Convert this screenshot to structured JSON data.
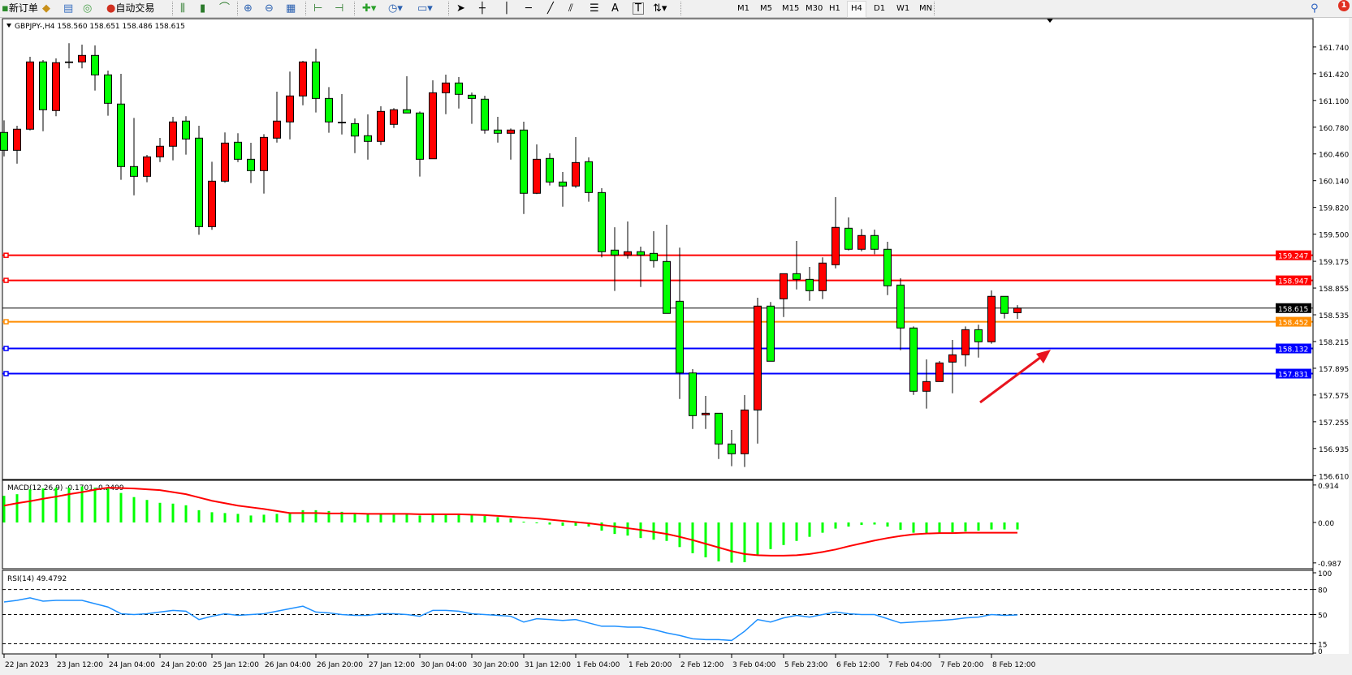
{
  "toolbar": {
    "new_order": "新订单",
    "auto_trading": "自动交易",
    "timeframes": [
      "M1",
      "M5",
      "M15",
      "M30",
      "H1",
      "H4",
      "D1",
      "W1",
      "MN"
    ],
    "active_timeframe": "H4",
    "notification_count": "1",
    "text_tool": "A",
    "text_label_tool": "T"
  },
  "chart": {
    "header": "GBPJPY-,H4  158.560 158.651 158.486 158.615",
    "colors": {
      "up": "#ff0000",
      "down": "#00ff00",
      "background": "#ffffff",
      "grid": "none"
    },
    "horizontal_lines": [
      {
        "price": "159.247",
        "color": "#ff0000"
      },
      {
        "price": "158.947",
        "color": "#ff0000"
      },
      {
        "price": "158.615",
        "color": "#000000"
      },
      {
        "price": "158.452",
        "color": "#ff8c00"
      },
      {
        "price": "158.132",
        "color": "#0000ff"
      },
      {
        "price": "157.831",
        "color": "#0000ff"
      }
    ],
    "annotation": {
      "type": "arrow",
      "direction": "up-right",
      "color": "#e8141e"
    }
  },
  "chart_data": [
    {
      "type": "candlestick",
      "symbol": "GBPJPY-",
      "timeframe": "H4",
      "price_ticks": [
        "161.740",
        "161.420",
        "161.100",
        "160.780",
        "160.460",
        "160.140",
        "159.820",
        "159.500",
        "159.175",
        "158.855",
        "158.535",
        "158.215",
        "157.895",
        "157.575",
        "157.255",
        "156.935",
        "156.610"
      ],
      "ylim": [
        156.61,
        161.74
      ],
      "time_labels": [
        "22 Jan 2023",
        "23 Jan 12:00",
        "24 Jan 04:00",
        "24 Jan 20:00",
        "25 Jan 12:00",
        "26 Jan 04:00",
        "26 Jan 20:00",
        "27 Jan 12:00",
        "30 Jan 04:00",
        "30 Jan 20:00",
        "31 Jan 12:00",
        "1 Feb 04:00",
        "1 Feb 20:00",
        "2 Feb 12:00",
        "3 Feb 04:00",
        "5 Feb 23:00",
        "6 Feb 12:00",
        "7 Feb 04:00",
        "7 Feb 20:00",
        "8 Feb 12:00"
      ],
      "ohlc": [
        [
          160.717,
          160.862,
          160.431,
          160.503
        ],
        [
          160.503,
          160.797,
          160.344,
          160.756
        ],
        [
          160.756,
          161.623,
          160.742,
          161.561
        ],
        [
          161.561,
          161.584,
          160.732,
          160.989
        ],
        [
          160.979,
          161.603,
          160.911,
          161.552
        ],
        [
          161.561,
          161.785,
          161.484,
          161.561
        ],
        [
          161.561,
          161.768,
          161.484,
          161.639
        ],
        [
          161.639,
          161.758,
          161.218,
          161.406
        ],
        [
          161.406,
          161.457,
          160.917,
          161.066
        ],
        [
          161.057,
          161.419,
          160.15,
          160.309
        ],
        [
          160.309,
          160.891,
          159.965,
          160.192
        ],
        [
          160.192,
          160.448,
          160.121,
          160.425
        ],
        [
          160.425,
          160.652,
          160.363,
          160.552
        ],
        [
          160.552,
          160.904,
          160.383,
          160.843
        ],
        [
          160.853,
          160.911,
          160.451,
          160.639
        ],
        [
          160.649,
          160.797,
          159.493,
          159.59
        ],
        [
          159.59,
          160.367,
          159.552,
          160.134
        ],
        [
          160.134,
          160.717,
          160.115,
          160.59
        ],
        [
          160.6,
          160.707,
          160.363,
          160.396
        ],
        [
          160.396,
          160.593,
          160.111,
          160.26
        ],
        [
          160.26,
          160.697,
          159.985,
          160.658
        ],
        [
          160.649,
          161.205,
          160.596,
          160.853
        ],
        [
          160.843,
          161.445,
          160.635,
          161.154
        ],
        [
          161.154,
          161.574,
          161.043,
          161.561
        ],
        [
          161.561,
          161.72,
          160.956,
          161.124
        ],
        [
          161.124,
          161.26,
          160.713,
          160.843
        ],
        [
          160.839,
          161.176,
          160.693,
          160.839
        ],
        [
          160.823,
          160.885,
          160.47,
          160.674
        ],
        [
          160.678,
          160.933,
          160.392,
          160.61
        ],
        [
          160.61,
          161.03,
          160.567,
          160.969
        ],
        [
          160.814,
          161.008,
          160.771,
          160.989
        ],
        [
          160.989,
          161.39,
          160.95,
          160.95
        ],
        [
          160.95,
          160.969,
          160.189,
          160.396
        ],
        [
          160.402,
          161.341,
          160.402,
          161.192
        ],
        [
          161.192,
          161.409,
          160.936,
          161.309
        ],
        [
          161.309,
          161.38,
          161.004,
          161.173
        ],
        [
          161.163,
          161.195,
          160.82,
          161.124
        ],
        [
          161.115,
          161.157,
          160.703,
          160.746
        ],
        [
          160.746,
          160.904,
          160.596,
          160.707
        ],
        [
          160.707,
          160.765,
          160.392,
          160.746
        ],
        [
          160.746,
          160.846,
          159.742,
          159.989
        ],
        [
          159.989,
          160.574,
          159.979,
          160.396
        ],
        [
          160.406,
          160.467,
          160.082,
          160.124
        ],
        [
          160.124,
          160.244,
          159.829,
          160.076
        ],
        [
          160.076,
          160.661,
          160.053,
          160.357
        ],
        [
          160.367,
          160.419,
          159.888,
          159.998
        ],
        [
          159.998,
          160.05,
          159.222,
          159.29
        ],
        [
          159.309,
          159.583,
          158.82,
          159.251
        ],
        [
          159.251,
          159.652,
          159.208,
          159.29
        ],
        [
          159.29,
          159.351,
          158.868,
          159.251
        ],
        [
          159.27,
          159.535,
          159.101,
          159.183
        ],
        [
          159.173,
          159.613,
          158.552,
          158.552
        ],
        [
          158.697,
          159.338,
          157.528,
          157.839
        ],
        [
          157.839,
          157.885,
          157.169,
          157.328
        ],
        [
          157.338,
          157.564,
          157.169,
          157.357
        ],
        [
          157.357,
          157.357,
          156.81,
          156.989
        ],
        [
          156.989,
          157.156,
          156.723,
          156.872
        ],
        [
          156.872,
          157.574,
          156.713,
          157.396
        ],
        [
          157.396,
          158.739,
          156.994,
          158.639
        ],
        [
          158.639,
          158.688,
          157.979,
          157.979
        ],
        [
          158.726,
          159.027,
          158.509,
          159.027
        ],
        [
          159.027,
          159.419,
          158.839,
          158.959
        ],
        [
          158.959,
          159.108,
          158.703,
          158.823
        ],
        [
          158.823,
          159.222,
          158.723,
          159.154
        ],
        [
          159.134,
          159.943,
          159.091,
          159.581
        ],
        [
          159.571,
          159.7,
          159.305,
          159.319
        ],
        [
          159.319,
          159.561,
          159.295,
          159.484
        ],
        [
          159.484,
          159.555,
          159.26,
          159.319
        ],
        [
          159.319,
          159.409,
          158.771,
          158.882
        ],
        [
          158.891,
          158.972,
          158.111,
          158.377
        ],
        [
          158.377,
          158.396,
          157.577,
          157.62
        ],
        [
          157.62,
          158.001,
          157.412,
          157.736
        ],
        [
          157.736,
          157.982,
          157.736,
          157.959
        ],
        [
          157.969,
          158.234,
          157.596,
          158.056
        ],
        [
          158.056,
          158.396,
          157.917,
          158.357
        ],
        [
          158.357,
          158.416,
          158.023,
          158.212
        ],
        [
          158.212,
          158.826,
          158.189,
          158.756
        ],
        [
          158.756,
          158.756,
          158.49,
          158.552
        ],
        [
          158.56,
          158.651,
          158.486,
          158.615
        ]
      ]
    },
    {
      "type": "bar+line",
      "label": "MACD(12,26,9) -0.1701 -0.2499",
      "ticks": [
        "0.914",
        "0.00",
        "-0.987"
      ],
      "ylim": [
        -0.987,
        0.914
      ],
      "main": [
        0.65,
        0.69,
        0.81,
        0.83,
        0.85,
        0.85,
        0.88,
        0.85,
        0.83,
        0.72,
        0.62,
        0.55,
        0.48,
        0.46,
        0.42,
        0.3,
        0.25,
        0.23,
        0.21,
        0.17,
        0.19,
        0.21,
        0.23,
        0.3,
        0.3,
        0.28,
        0.26,
        0.23,
        0.2,
        0.2,
        0.19,
        0.2,
        0.17,
        0.2,
        0.21,
        0.2,
        0.19,
        0.16,
        0.13,
        0.1,
        0.02,
        -0.02,
        -0.05,
        -0.08,
        -0.08,
        -0.1,
        -0.2,
        -0.28,
        -0.32,
        -0.38,
        -0.42,
        -0.45,
        -0.6,
        -0.75,
        -0.85,
        -0.95,
        -0.98,
        -0.97,
        -0.8,
        -0.65,
        -0.55,
        -0.45,
        -0.35,
        -0.25,
        -0.15,
        -0.1,
        -0.06,
        -0.05,
        -0.1,
        -0.18,
        -0.25,
        -0.26,
        -0.25,
        -0.24,
        -0.22,
        -0.2,
        -0.17,
        -0.17,
        -0.1701
      ],
      "signal": [
        0.41,
        0.47,
        0.52,
        0.58,
        0.63,
        0.69,
        0.74,
        0.8,
        0.85,
        0.84,
        0.83,
        0.81,
        0.79,
        0.74,
        0.69,
        0.61,
        0.53,
        0.47,
        0.41,
        0.37,
        0.33,
        0.28,
        0.23,
        0.23,
        0.23,
        0.22,
        0.22,
        0.22,
        0.21,
        0.21,
        0.21,
        0.21,
        0.2,
        0.2,
        0.2,
        0.2,
        0.19,
        0.18,
        0.16,
        0.14,
        0.12,
        0.1,
        0.07,
        0.04,
        0.01,
        -0.02,
        -0.06,
        -0.1,
        -0.14,
        -0.18,
        -0.23,
        -0.28,
        -0.35,
        -0.43,
        -0.52,
        -0.61,
        -0.7,
        -0.77,
        -0.8,
        -0.81,
        -0.81,
        -0.8,
        -0.77,
        -0.72,
        -0.66,
        -0.58,
        -0.51,
        -0.44,
        -0.38,
        -0.33,
        -0.29,
        -0.27,
        -0.26,
        -0.26,
        -0.25,
        -0.25,
        -0.25,
        -0.25,
        -0.2499
      ],
      "colors": {
        "main": "#00ff00",
        "signal": "#ff0000"
      }
    },
    {
      "type": "line",
      "label": "RSI(14) 49.4792",
      "ticks": [
        "100",
        "80",
        "50",
        "15",
        "0"
      ],
      "levels": [
        80,
        50,
        15
      ],
      "ylim": [
        0,
        100
      ],
      "values": [
        65,
        67,
        70,
        66,
        67,
        67,
        67,
        63,
        59,
        51,
        50,
        51,
        53,
        55,
        54,
        44,
        48,
        51,
        49,
        50,
        51,
        54,
        57,
        60,
        53,
        52,
        50,
        49,
        49,
        51,
        51,
        50,
        48,
        55,
        55,
        54,
        51,
        50,
        49,
        48,
        41,
        45,
        44,
        43,
        44,
        40,
        36,
        36,
        35,
        35,
        32,
        28,
        25,
        21,
        20,
        20,
        19,
        30,
        44,
        41,
        46,
        49,
        47,
        50,
        53,
        51,
        50,
        50,
        45,
        40,
        41,
        42,
        43,
        44,
        46,
        47,
        50,
        49,
        49.4792
      ],
      "color": "#1e90ff"
    }
  ]
}
